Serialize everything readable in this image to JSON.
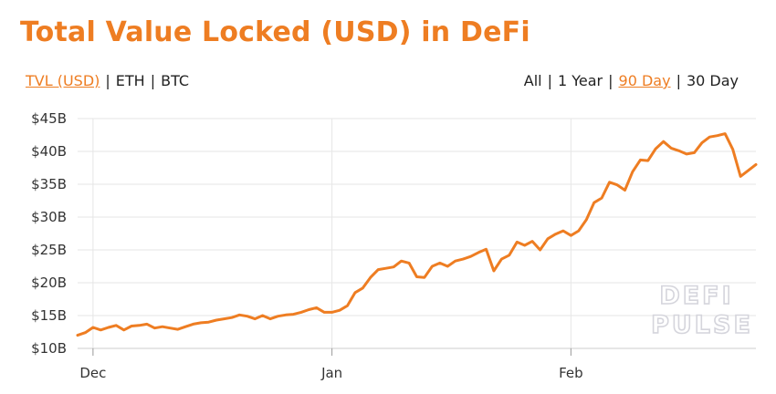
{
  "title": "Total Value Locked (USD) in DeFi",
  "denominations": [
    {
      "label": "TVL (USD)",
      "active": true
    },
    {
      "label": "ETH",
      "active": false
    },
    {
      "label": "BTC",
      "active": false
    }
  ],
  "ranges": [
    {
      "label": "All",
      "active": false
    },
    {
      "label": "1 Year",
      "active": false
    },
    {
      "label": "90 Day",
      "active": true
    },
    {
      "label": "30 Day",
      "active": false
    }
  ],
  "separator": "|",
  "watermark": [
    "DEFI",
    "PULSE"
  ],
  "colors": {
    "accent": "#ee7d22",
    "line": "#ee7d22",
    "grid": "#e6e6e6",
    "text": "#222222"
  },
  "chart_data": {
    "type": "line",
    "title": "Total Value Locked (USD) in DeFi",
    "xlabel": "",
    "ylabel": "",
    "ylim": [
      10,
      45
    ],
    "y_ticks": [
      10,
      15,
      20,
      25,
      30,
      35,
      40,
      45
    ],
    "y_tick_labels": [
      "$10B",
      "$15B",
      "$20B",
      "$25B",
      "$30B",
      "$35B",
      "$40B",
      "$45B"
    ],
    "x_ticks": [
      "Dec",
      "Jan",
      "Feb"
    ],
    "x_tick_dates": [
      "2020-12-01",
      "2021-01-01",
      "2021-02-01"
    ],
    "grid": true,
    "series": [
      {
        "x": [
          "2020-11-29",
          "2020-11-30",
          "2020-12-01",
          "2020-12-02",
          "2020-12-03",
          "2020-12-04",
          "2020-12-05",
          "2020-12-06",
          "2020-12-07",
          "2020-12-08",
          "2020-12-09",
          "2020-12-10",
          "2020-12-11",
          "2020-12-12",
          "2020-12-13",
          "2020-12-14",
          "2020-12-15",
          "2020-12-16",
          "2020-12-17",
          "2020-12-18",
          "2020-12-19",
          "2020-12-20",
          "2020-12-21",
          "2020-12-22",
          "2020-12-23",
          "2020-12-24",
          "2020-12-25",
          "2020-12-26",
          "2020-12-27",
          "2020-12-28",
          "2020-12-29",
          "2020-12-30",
          "2020-12-31",
          "2021-01-01",
          "2021-01-02",
          "2021-01-03",
          "2021-01-04",
          "2021-01-05",
          "2021-01-06",
          "2021-01-07",
          "2021-01-08",
          "2021-01-09",
          "2021-01-10",
          "2021-01-11",
          "2021-01-12",
          "2021-01-13",
          "2021-01-14",
          "2021-01-15",
          "2021-01-16",
          "2021-01-17",
          "2021-01-18",
          "2021-01-19",
          "2021-01-20",
          "2021-01-21",
          "2021-01-22",
          "2021-01-23",
          "2021-01-24",
          "2021-01-25",
          "2021-01-26",
          "2021-01-27",
          "2021-01-28",
          "2021-01-29",
          "2021-01-30",
          "2021-01-31",
          "2021-02-01",
          "2021-02-02",
          "2021-02-03",
          "2021-02-04",
          "2021-02-05",
          "2021-02-06",
          "2021-02-07",
          "2021-02-08",
          "2021-02-09",
          "2021-02-10",
          "2021-02-11",
          "2021-02-12",
          "2021-02-13",
          "2021-02-14",
          "2021-02-15",
          "2021-02-16",
          "2021-02-17",
          "2021-02-18",
          "2021-02-19",
          "2021-02-20",
          "2021-02-21",
          "2021-02-22",
          "2021-02-23",
          "2021-02-24",
          "2021-02-25"
        ],
        "values": [
          12.0,
          12.4,
          13.2,
          12.8,
          13.2,
          13.5,
          12.8,
          13.4,
          13.5,
          13.7,
          13.1,
          13.3,
          13.1,
          12.9,
          13.3,
          13.7,
          13.9,
          14.0,
          14.3,
          14.5,
          14.7,
          15.1,
          14.9,
          14.5,
          15.0,
          14.5,
          14.9,
          15.1,
          15.2,
          15.5,
          15.9,
          16.2,
          15.5,
          15.5,
          15.8,
          16.5,
          18.5,
          19.2,
          20.8,
          22.0,
          22.2,
          22.4,
          23.3,
          23.0,
          20.9,
          20.8,
          22.5,
          23.0,
          22.5,
          23.3,
          23.6,
          24.0,
          24.6,
          25.1,
          21.8,
          23.6,
          24.2,
          26.2,
          25.7,
          26.3,
          25.0,
          26.7,
          27.4,
          27.9,
          27.2,
          27.9,
          29.6,
          32.2,
          32.9,
          35.3,
          34.9,
          34.1,
          36.9,
          38.7,
          38.6,
          40.4,
          41.5,
          40.5,
          40.1,
          39.6,
          39.8,
          41.3,
          42.2,
          42.4,
          42.7,
          40.3,
          36.2,
          37.1,
          38.0
        ]
      }
    ]
  }
}
